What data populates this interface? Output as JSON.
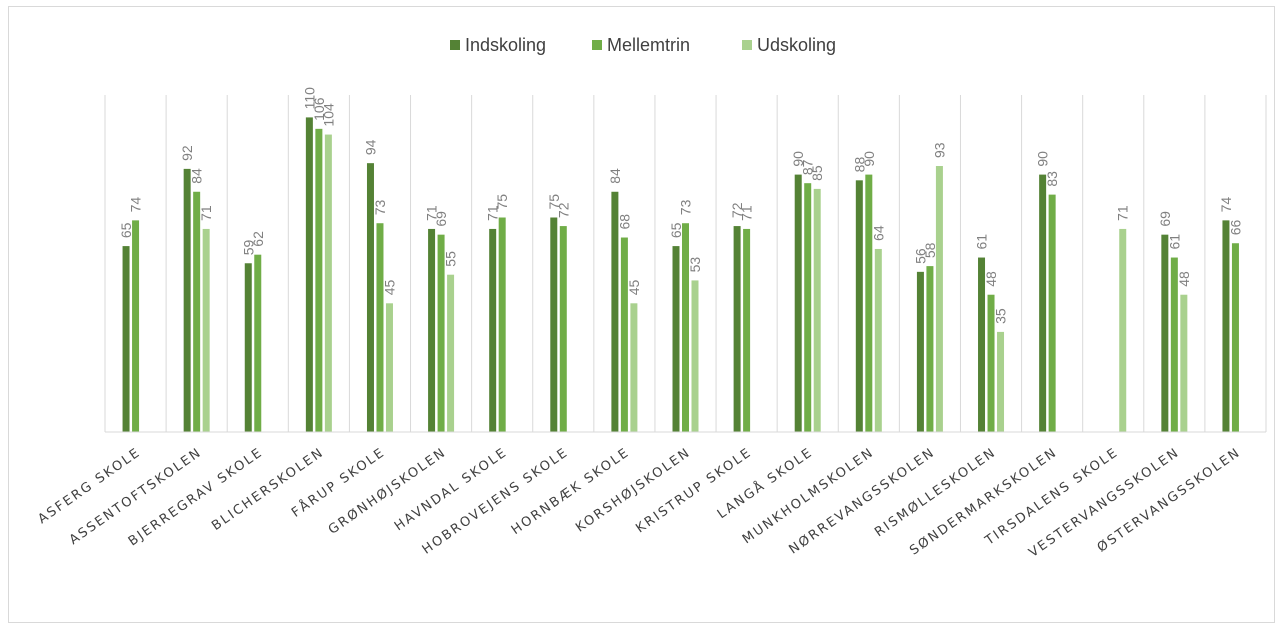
{
  "chart_data": {
    "type": "bar",
    "title": "",
    "xlabel": "",
    "ylabel": "",
    "ylim": [
      0,
      115
    ],
    "grid": "vertical category separators",
    "legend_position": "top",
    "categories": [
      "ASFERG SKOLE",
      "ASSENTOFTSKOLEN",
      "BJERREGRAV SKOLE",
      "BLICHERSKOLEN",
      "FÅRUP SKOLE",
      "GRØNHØJSKOLEN",
      "HAVNDAL SKOLE",
      "HOBROVEJENS SKOLE",
      "HORNBÆK SKOLE",
      "KORSHØJSKOLEN",
      "KRISTRUP SKOLE",
      "LANGÅ SKOLE",
      "MUNKHOLMSKOLEN",
      "NØRREVANGSSKOLEN",
      "RISMØLLESKOLEN",
      "SØNDERMARKSKOLEN",
      "TIRSDALENS SKOLE",
      "VESTERVANGSSKOLEN",
      "ØSTERVANGSSKOLEN"
    ],
    "series": [
      {
        "name": "Indskoling",
        "color": "#548235",
        "values": [
          65,
          92,
          59,
          110,
          94,
          71,
          71,
          75,
          84,
          65,
          72,
          90,
          88,
          56,
          61,
          90,
          null,
          69,
          74
        ]
      },
      {
        "name": "Mellemtrin",
        "color": "#70ad47",
        "values": [
          74,
          84,
          62,
          106,
          73,
          69,
          75,
          72,
          68,
          73,
          71,
          87,
          90,
          58,
          48,
          83,
          null,
          61,
          66
        ]
      },
      {
        "name": "Udskoling",
        "color": "#a9d18e",
        "values": [
          null,
          71,
          null,
          104,
          45,
          55,
          null,
          null,
          45,
          53,
          null,
          85,
          64,
          93,
          35,
          null,
          71,
          48,
          null
        ]
      }
    ]
  }
}
